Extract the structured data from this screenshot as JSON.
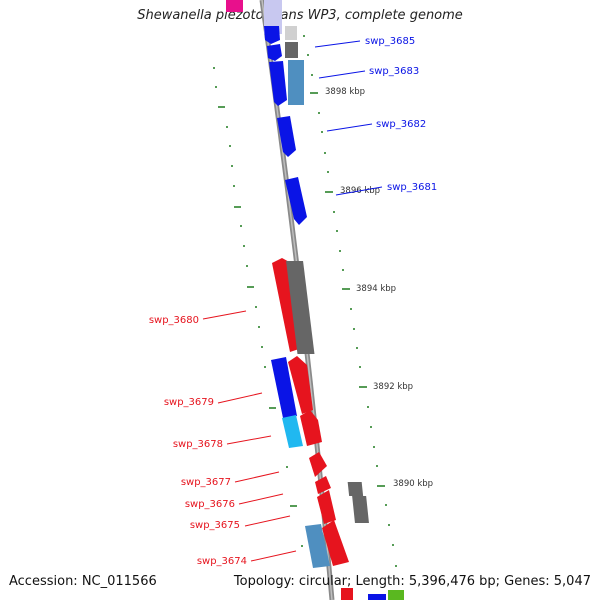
{
  "header": {
    "title": "Shewanella piezotolerans WP3, complete genome"
  },
  "footer": {
    "accession": "Accession: NC_011566",
    "stats": "Topology: circular; Length: 5,396,476 bp; Genes: 5,047"
  },
  "colors": {
    "reverse_strand": "#0a14e6",
    "forward_strand": "#e6141e",
    "backbone": "#8a8a8a",
    "tick": "#1e7a1e",
    "gc_light_blue": "#4f8fc0",
    "gc_cyan": "#20b8f0",
    "gc_gray": "#666666"
  },
  "scale_labels": [
    "3898 kbp",
    "3896 kbp",
    "3894 kbp",
    "3892 kbp",
    "3890 kbp"
  ],
  "genes_right": [
    "swp_3685",
    "swp_3683",
    "swp_3682",
    "swp_3681"
  ],
  "genes_left": [
    "swp_3680",
    "swp_3679",
    "swp_3678",
    "swp_3677",
    "swp_3676",
    "swp_3675",
    "swp_3674"
  ]
}
